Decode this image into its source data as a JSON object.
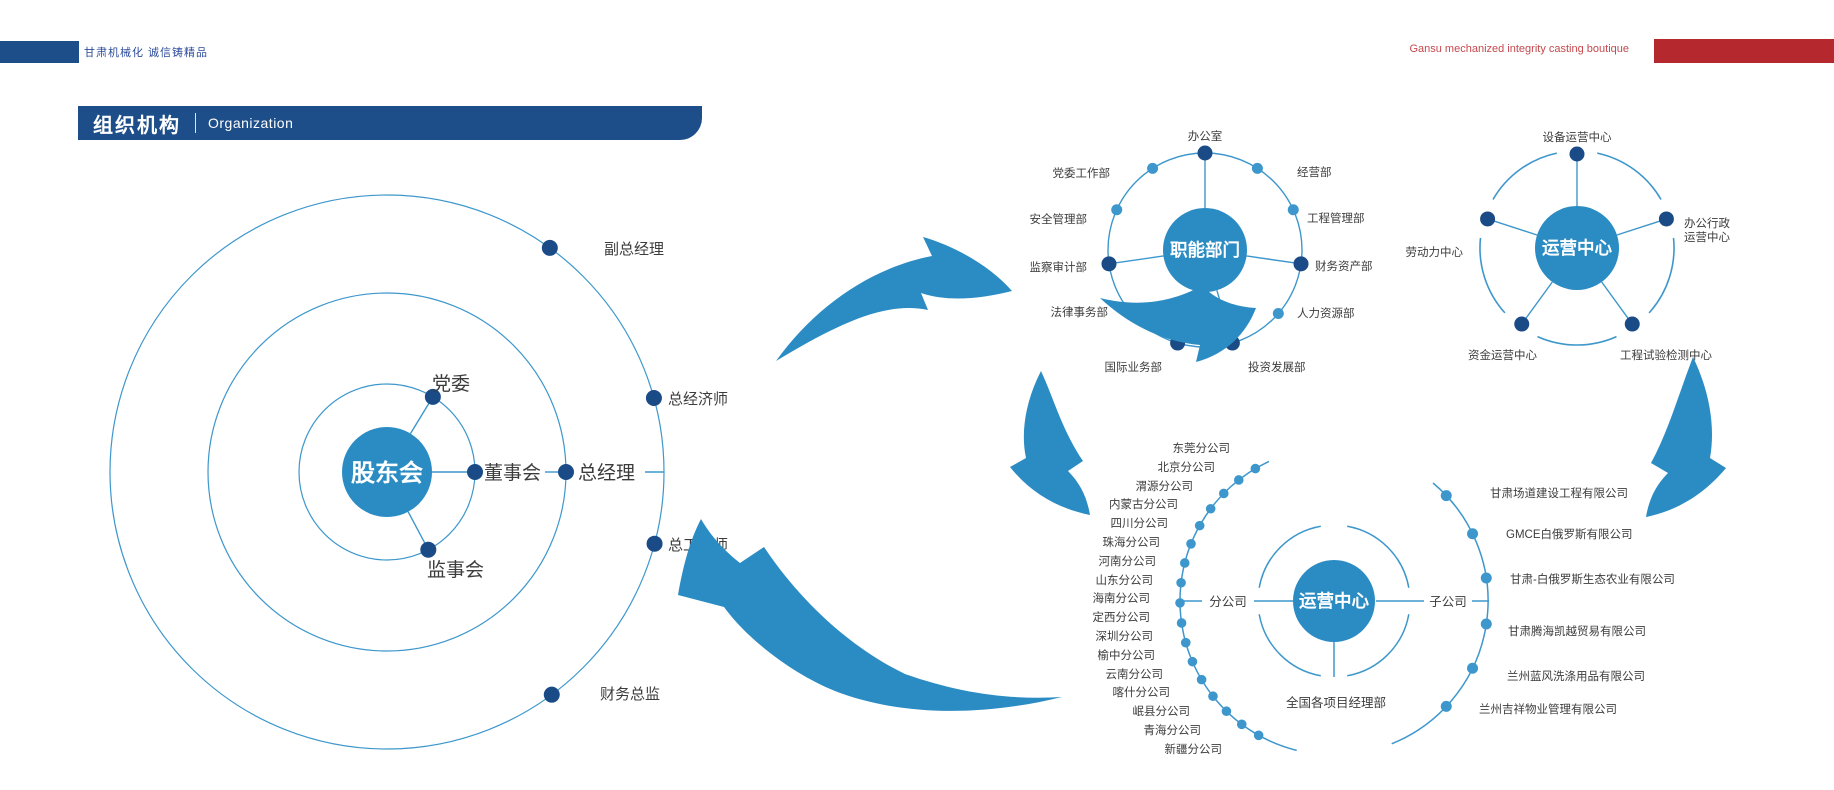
{
  "header": {
    "slogan_zh": "甘肃机械化 诚信铸精品",
    "slogan_en": "Gansu mechanized integrity casting boutique",
    "title_zh": "组织机构",
    "title_en": "Organization"
  },
  "colors": {
    "navy_bar": "#1d4e8a",
    "red_bar": "#b5292e",
    "slogan_blue": "#2d4c9b",
    "slogan_red": "#c4494d",
    "ring_blue": "#3d97cc",
    "hub_blue": "#2b8cc4",
    "dot_navy": "#1a4b87",
    "arrow_blue": "#2b8cc4",
    "label_dark": "#3c3c3c"
  },
  "governance_orbit": {
    "center_label": "股东会",
    "inner_satellites": [
      "党委",
      "董事会",
      "监事会"
    ],
    "middle_satellite": "总经理",
    "outer_satellites": [
      "副总经理",
      "总经济师",
      "总工程师",
      "财务总监"
    ]
  },
  "functional_wheel": {
    "hub_label": "职能部门",
    "departments": [
      "办公室",
      "经营部",
      "工程管理部",
      "财务资产部",
      "人力资源部",
      "投资发展部",
      "国际业务部",
      "法律事务部",
      "监察审计部",
      "安全管理部",
      "党委工作部"
    ]
  },
  "operations_wheel": {
    "hub_label": "运营中心",
    "centers": [
      "设备运营中心",
      "办公行政运营中心",
      "劳动力中心",
      "资金运营中心",
      "工程试验检测中心"
    ]
  },
  "company_wheel": {
    "hub_label": "运营中心",
    "branch_axis_label": "分公司",
    "subsidiary_axis_label": "子公司",
    "projects_label": "全国各项目经理部",
    "branches": [
      "东莞分公司",
      "北京分公司",
      "渭源分公司",
      "内蒙古分公司",
      "四川分公司",
      "珠海分公司",
      "河南分公司",
      "山东分公司",
      "海南分公司",
      "定西分公司",
      "深圳分公司",
      "榆中分公司",
      "云南分公司",
      "喀什分公司",
      "岷县分公司",
      "青海分公司",
      "新疆分公司"
    ],
    "subsidiaries": [
      "甘肃场道建设工程有限公司",
      "GMCE白俄罗斯有限公司",
      "甘肃-白俄罗斯生态农业有限公司",
      "甘肃腾海凯越贸易有限公司",
      "兰州蓝风洗涤用品有限公司",
      "兰州吉祥物业管理有限公司"
    ]
  }
}
